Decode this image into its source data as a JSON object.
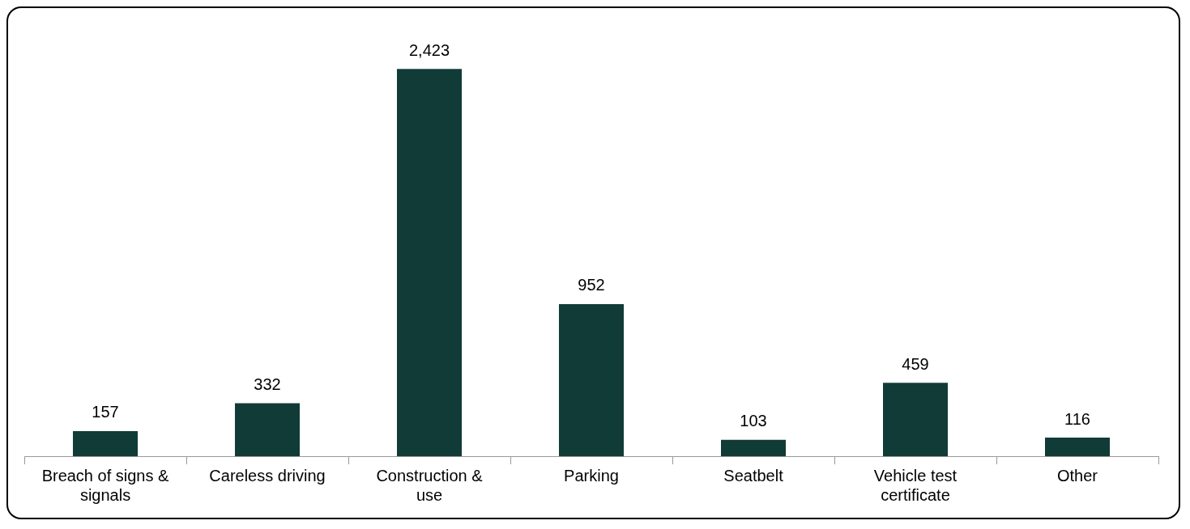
{
  "chart_data": {
    "type": "bar",
    "categories": [
      "Breach of signs & signals",
      "Careless driving",
      "Construction & use",
      "Parking",
      "Seatbelt",
      "Vehicle test certificate",
      "Other"
    ],
    "values": [
      157,
      332,
      2423,
      952,
      103,
      459,
      116
    ],
    "value_labels": [
      "157",
      "332",
      "2,423",
      "952",
      "103",
      "459",
      "116"
    ],
    "color": "#113b37",
    "tick_labels": "x",
    "grid": false,
    "legend": false
  }
}
